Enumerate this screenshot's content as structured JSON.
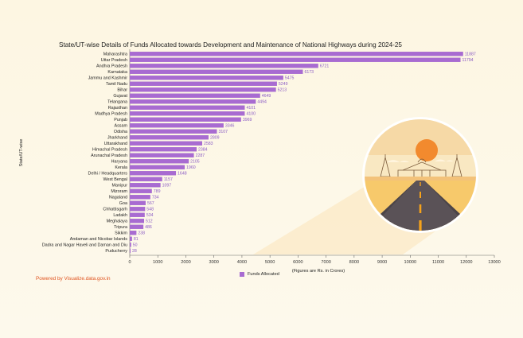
{
  "title": "State/UT-wise Details of Funds Allocated towards Development and Maintenance of National Highways during 2024-25",
  "credit": "Powered by Visualize.data.gov.in",
  "chart_data": {
    "type": "bar",
    "orientation": "horizontal",
    "title": "State/UT-wise Details of Funds Allocated towards Development and Maintenance of National Highways during 2024-25",
    "xlabel": "(Figures are Rs. in Crores)",
    "ylabel": "State/UT-wise",
    "xlim": [
      0,
      13000
    ],
    "xticks": [
      "0",
      "1000",
      "2000",
      "3000",
      "4000",
      "5000",
      "6000",
      "7000",
      "8000",
      "9000",
      "10000",
      "11000",
      "12000",
      "13000"
    ],
    "legend": "bottom-center",
    "grid": false,
    "bar_color": "#a86bd1",
    "series": [
      {
        "name": "Funds Allocated",
        "values": [
          11887,
          11794,
          6721,
          6173,
          5475,
          5249,
          5213,
          4649,
          4494,
          4101,
          4100,
          3969,
          3346,
          3107,
          2809,
          2583,
          2384,
          2287,
          2105,
          1960,
          1648,
          1157,
          1097,
          789,
          734,
          567,
          548,
          534,
          512,
          486,
          238,
          81,
          50,
          28
        ]
      }
    ],
    "categories": [
      "Maharashtra",
      "Uttar Pradesh",
      "Andhra Pradesh",
      "Karnataka",
      "Jammu and Kashmir",
      "Tamil Nadu",
      "Bihar",
      "Gujarat",
      "Telangana",
      "Rajasthan",
      "Madhya Pradesh",
      "Punjab",
      "Assam",
      "Odisha",
      "Jharkhand",
      "Uttarakhand",
      "Himachal Pradesh",
      "Arunachal Pradesh",
      "Haryana",
      "Kerala",
      "Delhi / Headquarters",
      "West Bengal",
      "Manipur",
      "Mizoram",
      "Nagaland",
      "Goa",
      "Chhattisgarh",
      "Ladakh",
      "Meghalaya",
      "Tripura",
      "Sikkim",
      "Andaman and Nicobar Islands",
      "Dadra and Nagar Haveli and Daman and Diu",
      "Puducherry"
    ]
  }
}
